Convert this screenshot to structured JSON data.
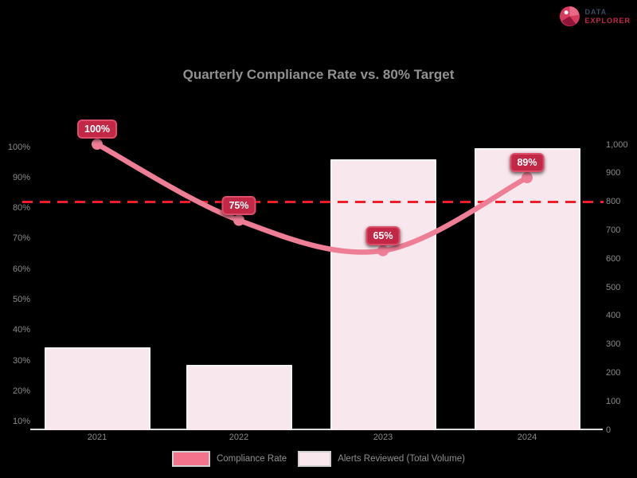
{
  "logo": {
    "line1": "DATA",
    "line2": "EXPLORER"
  },
  "title": "Quarterly Compliance Rate vs. 80% Target",
  "colors": {
    "background": "#000000",
    "line": "#ee7d96",
    "bar_fill": "#f9e7ee",
    "bar_border": "#f2f3f5",
    "target_line": "#f01c28",
    "chip_fill": "#c22746",
    "chip_border": "#dd4e6b",
    "axis_text": "#8a8a8a",
    "title_text": "#919191",
    "logo_line1": "#3d4961",
    "logo_line2": "#c2294b"
  },
  "chart_data": {
    "type": "bar",
    "categories": [
      "2021",
      "2022",
      "2023",
      "2024"
    ],
    "series": [
      {
        "name": "Compliance Rate",
        "type": "line",
        "unit": "%",
        "axis": "left",
        "values": [
          100,
          75,
          65,
          89
        ],
        "point_labels": [
          "100%",
          "75%",
          "65%",
          "89%"
        ],
        "color": "#ee7d96"
      },
      {
        "name": "Alerts Reviewed (Total Volume)",
        "type": "bar",
        "axis": "right",
        "values": [
          290,
          230,
          950,
          990
        ],
        "color": "#f9e7ee"
      }
    ],
    "target_line": {
      "value": 80,
      "axis": "left",
      "style": "dashed",
      "color": "#f01c28"
    },
    "left_axis": {
      "min": 0,
      "max": 100,
      "ticks": [
        "100%",
        "90%",
        "80%",
        "70%",
        "60%",
        "50%",
        "40%",
        "30%",
        "20%",
        "10%"
      ]
    },
    "right_axis": {
      "min": 0,
      "max": 1000,
      "ticks": [
        "1,000",
        "900",
        "800",
        "700",
        "600",
        "500",
        "400",
        "300",
        "200",
        "100",
        "0"
      ]
    },
    "grid": false,
    "legend_position": "bottom",
    "title": "Quarterly Compliance Rate vs. 80% Target"
  }
}
